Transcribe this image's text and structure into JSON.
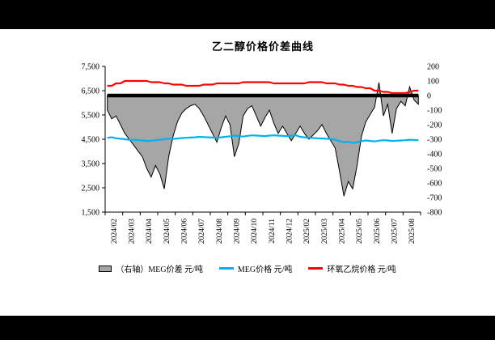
{
  "window": {
    "background": "#000000",
    "panel_background": "#ffffff"
  },
  "chart_data": {
    "type": "combo",
    "title": "乙二醇价格价差曲线",
    "legend_position": "bottom",
    "grid": false,
    "x_tick_labels": [
      "2024/02",
      "2024/03",
      "2024/04",
      "2024/05",
      "2024/06",
      "2024/07",
      "2024/08",
      "2024/09",
      "2024/10",
      "2024/11",
      "2024/12",
      "2025/02",
      "2025/03",
      "2025/04",
      "2025/05",
      "2025/06",
      "2025/07",
      "2025/08"
    ],
    "points_per_month": 4,
    "left_axis": {
      "min": 1500,
      "max": 7500,
      "ticks": [
        "7,500",
        "6,500",
        "5,500",
        "4,500",
        "3,500",
        "2,500",
        "1,500"
      ]
    },
    "right_axis": {
      "min": -800,
      "max": 200,
      "ticks": [
        "200",
        "100",
        "0",
        "-100",
        "-200",
        "-300",
        "-400",
        "-500",
        "-600",
        "-700",
        "-800"
      ]
    },
    "series": [
      {
        "name": "（右轴）MEG价差 元/吨",
        "type": "area",
        "axis": "right",
        "color": "#A6A6A6",
        "border": "#000000",
        "values": [
          -100,
          -160,
          -140,
          -200,
          -260,
          -300,
          -340,
          -380,
          -420,
          -500,
          -560,
          -480,
          -540,
          -640,
          -420,
          -280,
          -180,
          -120,
          -90,
          -70,
          -60,
          -90,
          -140,
          -200,
          -260,
          -320,
          -220,
          -140,
          -200,
          -420,
          -330,
          -140,
          -90,
          -70,
          -140,
          -210,
          -150,
          -100,
          -190,
          -260,
          -210,
          -260,
          -310,
          -260,
          -210,
          -260,
          -300,
          -270,
          -240,
          -200,
          -260,
          -310,
          -360,
          -520,
          -690,
          -590,
          -640,
          -480,
          -280,
          -180,
          -130,
          -80,
          90,
          -140,
          -60,
          -260,
          -90,
          -40,
          -70,
          60,
          -30,
          -60
        ]
      },
      {
        "name": "MEG价格 元/吨",
        "type": "line",
        "axis": "left",
        "color": "#00B0F0",
        "values": [
          4560,
          4580,
          4540,
          4520,
          4500,
          4480,
          4470,
          4460,
          4450,
          4430,
          4440,
          4460,
          4480,
          4500,
          4520,
          4510,
          4530,
          4550,
          4560,
          4570,
          4580,
          4600,
          4590,
          4580,
          4570,
          4560,
          4580,
          4600,
          4620,
          4650,
          4630,
          4610,
          4640,
          4660,
          4650,
          4640,
          4630,
          4650,
          4660,
          4650,
          4640,
          4630,
          4650,
          4660,
          4600,
          4580,
          4560,
          4550,
          4540,
          4530,
          4520,
          4510,
          4480,
          4420,
          4380,
          4400,
          4350,
          4380,
          4420,
          4450,
          4430,
          4410,
          4440,
          4460,
          4450,
          4430,
          4440,
          4450,
          4460,
          4480,
          4470,
          4460
        ]
      },
      {
        "name": "环氧乙烷价格 元/吨",
        "type": "line",
        "axis": "left",
        "color": "#FF0000",
        "values": [
          6700,
          6700,
          6800,
          6800,
          6900,
          6900,
          6900,
          6900,
          6900,
          6900,
          6850,
          6850,
          6850,
          6800,
          6800,
          6750,
          6750,
          6750,
          6700,
          6700,
          6700,
          6700,
          6750,
          6750,
          6750,
          6800,
          6800,
          6800,
          6800,
          6800,
          6800,
          6850,
          6850,
          6850,
          6850,
          6850,
          6850,
          6850,
          6800,
          6800,
          6800,
          6800,
          6800,
          6800,
          6800,
          6800,
          6850,
          6850,
          6850,
          6850,
          6800,
          6800,
          6800,
          6750,
          6750,
          6700,
          6700,
          6650,
          6650,
          6600,
          6600,
          6500,
          6500,
          6450,
          6450,
          6400,
          6400,
          6400,
          6400,
          6450,
          6500,
          6500
        ]
      }
    ]
  }
}
